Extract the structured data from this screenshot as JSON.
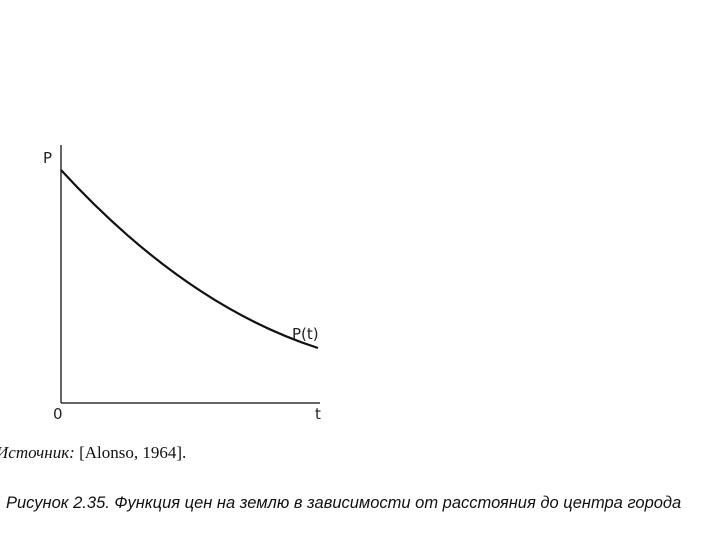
{
  "diagram": {
    "y_axis_label": "P",
    "x_axis_label": "t",
    "origin_label": "0",
    "curve_label": "P(t)"
  },
  "source": {
    "prefix": "Источник:",
    "reference": "[Alonso, 1964]."
  },
  "caption": "Рисунок 2.35. Функция цен на землю в зависимости от расстояния до центра города"
}
